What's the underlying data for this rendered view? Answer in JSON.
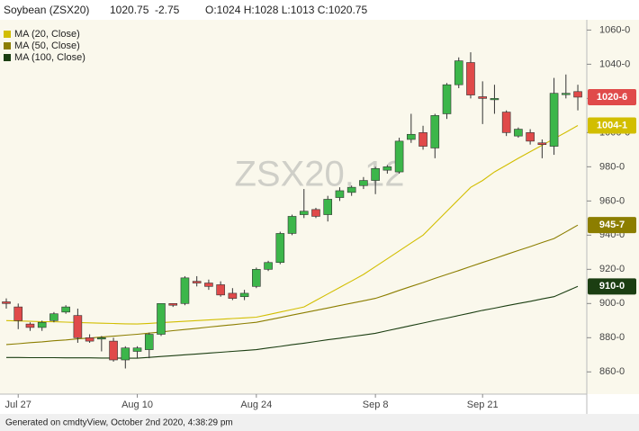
{
  "chart_data": {
    "type": "candlestick",
    "symbol": "Soybean (ZSX20)",
    "last": "1020.75",
    "change": "-2.75",
    "ohlc": "O:1024 H:1028 L:1013 C:1020.75",
    "watermark": "ZSX20, 12",
    "footer": "Generated on cmdtyView, October 2nd 2020, 4:38:29 pm",
    "categories": [
      null,
      "Jul 27",
      null,
      null,
      null,
      null,
      null,
      null,
      null,
      null,
      null,
      "Aug 10",
      null,
      null,
      null,
      null,
      null,
      null,
      null,
      null,
      null,
      "Aug 24",
      null,
      null,
      null,
      null,
      null,
      null,
      null,
      null,
      null,
      "Sep 8",
      null,
      null,
      null,
      null,
      null,
      null,
      null,
      null,
      "Sep 21",
      null,
      null,
      null,
      null,
      null,
      null,
      null,
      null
    ],
    "candles": {
      "up_color": "#3cb64a",
      "down_color": "#e04a4a",
      "open": [
        901,
        898,
        888,
        886,
        890,
        895,
        893,
        880,
        880,
        878,
        867,
        872,
        873,
        882,
        900,
        900,
        913,
        912,
        911,
        906,
        904,
        910,
        920,
        924,
        941,
        952,
        955,
        952,
        962,
        965,
        969,
        972,
        978,
        977,
        996,
        1000,
        991,
        1011,
        1028,
        1041,
        1021,
        1020,
        1012,
        998,
        1000,
        994,
        992,
        1023,
        1024
      ],
      "high": [
        903,
        900,
        889,
        890,
        895,
        899,
        897,
        882,
        881,
        880,
        875,
        875,
        883,
        900,
        900,
        916,
        916,
        914,
        913,
        909,
        908,
        921,
        925,
        942,
        952,
        967,
        956,
        963,
        968,
        969,
        974,
        980,
        981,
        997,
        1011,
        1004,
        1011,
        1029,
        1044,
        1047,
        1030,
        1028,
        1013,
        1003,
        1002,
        996,
        1032,
        1034,
        1028
      ],
      "low": [
        897,
        885,
        884,
        884,
        889,
        894,
        877,
        877,
        872,
        866,
        862,
        868,
        868,
        881,
        898,
        899,
        910,
        908,
        904,
        902,
        902,
        909,
        919,
        923,
        940,
        950,
        950,
        948,
        960,
        963,
        967,
        964,
        976,
        976,
        994,
        990,
        985,
        1008,
        1026,
        1020,
        1005,
        1011,
        998,
        997,
        993,
        985,
        987,
        1020,
        1013
      ],
      "close": [
        900,
        890,
        886,
        889,
        894,
        898,
        880,
        878,
        880,
        867,
        874,
        874,
        882,
        900,
        899,
        915,
        912,
        910,
        905,
        903,
        906,
        920,
        924,
        941,
        951,
        954,
        951,
        961,
        966,
        968,
        972,
        979,
        980,
        995,
        999,
        992,
        1010,
        1028,
        1042,
        1022,
        1020,
        1020,
        1000,
        1002,
        995,
        993,
        1023,
        1023,
        1020.75
      ],
      "last_label": "1020-6"
    },
    "series": [
      {
        "name": "MA (20, Close)",
        "color": "#d2be00",
        "last_label": "1004-1",
        "values": [
          890,
          889.8,
          889.6,
          889.4,
          889.3,
          889.1,
          888.9,
          888.7,
          888.5,
          888.3,
          888.1,
          888,
          888.4,
          888.8,
          889.2,
          889.6,
          890,
          890.4,
          890.8,
          891.2,
          891.6,
          892,
          893.5,
          895,
          896.5,
          898,
          901.8,
          905.6,
          909.4,
          913.2,
          917,
          921.6,
          926.2,
          930.8,
          935.4,
          940,
          947,
          954,
          961,
          968,
          972,
          977,
          981,
          985,
          988.8,
          992.6,
          996.4,
          1000.2,
          1004.125
        ]
      },
      {
        "name": "MA (50, Close)",
        "color": "#8c7e00",
        "last_label": "945-7",
        "values": [
          876,
          876.5,
          877.1,
          877.6,
          878.2,
          878.7,
          879.3,
          879.8,
          880.4,
          880.9,
          881.5,
          882,
          882.7,
          883.4,
          884.1,
          884.8,
          885.5,
          886.2,
          886.9,
          887.6,
          888.3,
          889,
          890.4,
          891.8,
          893.2,
          894.6,
          896,
          897.4,
          898.8,
          900.2,
          901.6,
          903,
          905.3,
          907.7,
          910,
          912.3,
          914.7,
          917,
          919.3,
          921.7,
          924,
          926.3,
          928.7,
          931,
          933.3,
          935.7,
          938,
          941.9,
          945.875
        ]
      },
      {
        "name": "MA (100, Close)",
        "color": "#1b3e12",
        "last_label": "910-0",
        "values": [
          868.4,
          868.4,
          868.3,
          868.3,
          868.3,
          868.2,
          868.2,
          868.2,
          868.1,
          868.1,
          868,
          868,
          868.5,
          869,
          869.5,
          870,
          870.5,
          871,
          871.5,
          872,
          872.5,
          873,
          874,
          874.9,
          875.9,
          876.8,
          877.8,
          878.8,
          879.7,
          880.7,
          881.6,
          882.6,
          884.1,
          885.6,
          887.1,
          888.6,
          890.1,
          891.5,
          893,
          894.5,
          896,
          897.3,
          898.7,
          900,
          901.3,
          902.7,
          904,
          907,
          910
        ]
      }
    ],
    "ylim": [
      847,
      1066
    ],
    "yticks": [
      {
        "value": 860,
        "label": "860-0"
      },
      {
        "value": 880,
        "label": "880-0"
      },
      {
        "value": 900,
        "label": "900-0"
      },
      {
        "value": 920,
        "label": "920-0"
      },
      {
        "value": 940,
        "label": "940-0"
      },
      {
        "value": 960,
        "label": "960-0"
      },
      {
        "value": 980,
        "label": "980-0"
      },
      {
        "value": 1000,
        "label": "1000-0"
      },
      {
        "value": 1020,
        "label": "1020-0"
      },
      {
        "value": 1040,
        "label": "1040-0"
      },
      {
        "value": 1060,
        "label": "1060-0"
      }
    ],
    "grid": false,
    "legend": "top-left"
  }
}
